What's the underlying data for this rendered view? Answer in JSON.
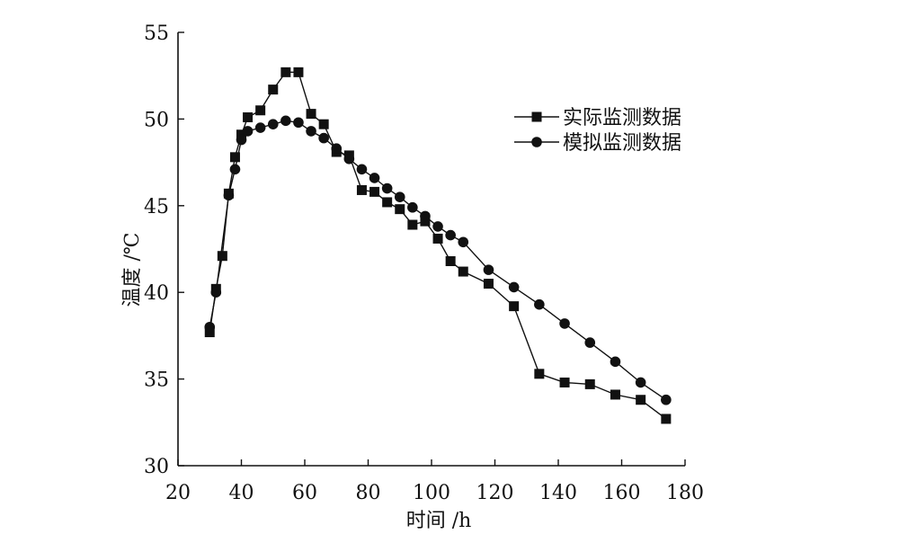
{
  "chart_data": {
    "type": "line",
    "title": "",
    "xlabel": "时间 /h",
    "ylabel": "温度 /℃",
    "xlim": [
      20,
      180
    ],
    "ylim": [
      30,
      55
    ],
    "xticks": [
      20,
      40,
      60,
      80,
      100,
      120,
      140,
      160,
      180
    ],
    "yticks": [
      30,
      35,
      40,
      45,
      50,
      55
    ],
    "xtick_labels": [
      "20",
      "40",
      "60",
      "80",
      "100",
      "120",
      "140",
      "160",
      "180"
    ],
    "ytick_labels": [
      "30",
      "35",
      "40",
      "45",
      "50",
      "55"
    ],
    "grid": false,
    "legend_position": "top-right",
    "series": [
      {
        "name": "实际监测数据",
        "marker": "square",
        "color": "#111111",
        "x": [
          30,
          32,
          34,
          36,
          38,
          40,
          42,
          46,
          50,
          54,
          58,
          62,
          66,
          70,
          74,
          78,
          82,
          86,
          90,
          94,
          98,
          102,
          106,
          110,
          118,
          126,
          134,
          142,
          150,
          158,
          166,
          174
        ],
        "y": [
          37.7,
          40.2,
          42.1,
          45.7,
          47.8,
          49.1,
          50.1,
          50.5,
          51.7,
          52.7,
          52.7,
          50.3,
          49.7,
          48.1,
          47.9,
          45.9,
          45.8,
          45.2,
          44.8,
          43.9,
          44.1,
          43.1,
          41.8,
          41.2,
          40.5,
          39.2,
          35.3,
          34.8,
          34.7,
          34.1,
          33.8,
          32.7
        ]
      },
      {
        "name": "模拟监测数据",
        "marker": "circle",
        "color": "#111111",
        "x": [
          30,
          32,
          36,
          38,
          40,
          42,
          46,
          50,
          54,
          58,
          62,
          66,
          70,
          74,
          78,
          82,
          86,
          90,
          94,
          98,
          102,
          106,
          110,
          118,
          126,
          134,
          142,
          150,
          158,
          166,
          174
        ],
        "y": [
          38.0,
          40.0,
          45.6,
          47.1,
          48.8,
          49.3,
          49.5,
          49.7,
          49.9,
          49.8,
          49.3,
          48.9,
          48.3,
          47.7,
          47.1,
          46.6,
          46.0,
          45.5,
          44.9,
          44.4,
          43.8,
          43.3,
          42.9,
          41.3,
          40.3,
          39.3,
          38.2,
          37.1,
          36.0,
          34.8,
          33.8
        ]
      }
    ]
  }
}
